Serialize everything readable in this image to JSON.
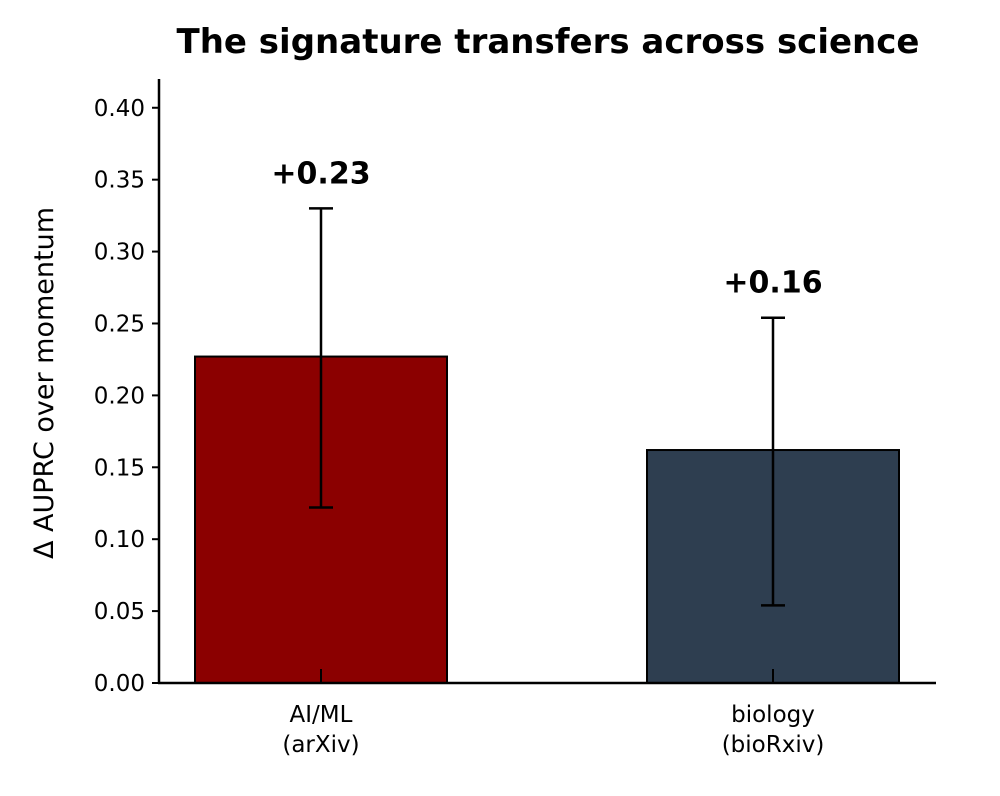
{
  "chart_data": {
    "type": "bar",
    "title": "The signature transfers across science",
    "xlabel": "",
    "ylabel": "Δ AUPRC over momentum",
    "ylim": [
      0,
      0.42
    ],
    "yticks": [
      "0.00",
      "0.05",
      "0.10",
      "0.15",
      "0.20",
      "0.25",
      "0.30",
      "0.35",
      "0.40"
    ],
    "categories": [
      [
        "AI/ML",
        "(arXiv)"
      ],
      [
        "biology",
        "(bioRxiv)"
      ]
    ],
    "values": [
      0.227,
      0.162
    ],
    "error_low": [
      0.122,
      0.054
    ],
    "error_high": [
      0.33,
      0.254
    ],
    "data_labels": [
      "+0.23",
      "+0.16"
    ],
    "colors": [
      "#8b0000",
      "#2e3e50"
    ],
    "grid": false,
    "legend": "none"
  }
}
